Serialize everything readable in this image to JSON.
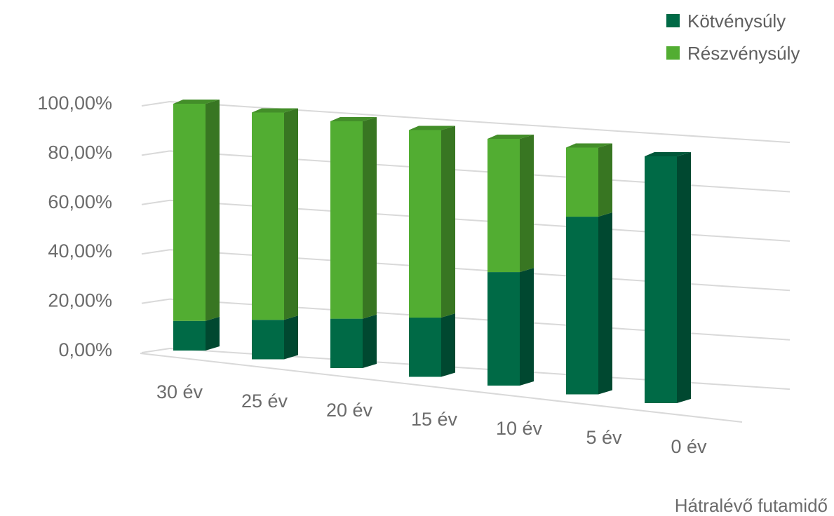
{
  "chart_data": {
    "type": "bar",
    "stacked": true,
    "three_d": true,
    "categories": [
      "30 év",
      "25 év",
      "20 év",
      "15 év",
      "10 év",
      "5 év",
      "0 év"
    ],
    "series": [
      {
        "name": "Kötvénysúly",
        "color": "#006a46",
        "values": [
          12,
          16,
          20,
          24,
          46,
          72,
          100
        ]
      },
      {
        "name": "Részvénysúly",
        "color": "#52ad32",
        "values": [
          88,
          84,
          80,
          76,
          54,
          28,
          0
        ]
      }
    ],
    "xlabel": "Hátralévő futamidő",
    "ylabel": "",
    "ylim": [
      0,
      100
    ],
    "yticks": [
      "0,00%",
      "20,00%",
      "40,00%",
      "60,00%",
      "80,00%",
      "100,00%"
    ],
    "grid": true,
    "legend": "top-right"
  }
}
